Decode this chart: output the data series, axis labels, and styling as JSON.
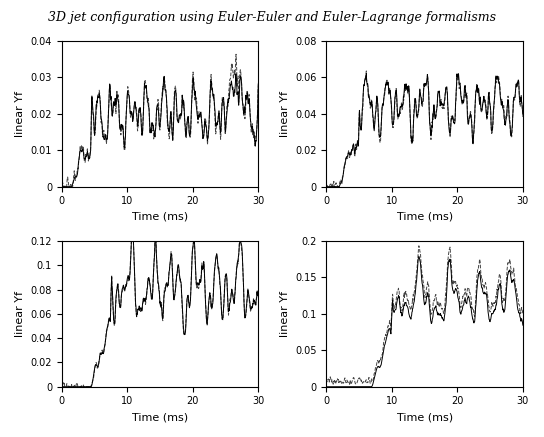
{
  "title": "3D jet configuration using Euler-Euler and Euler-Lagrange formalisms",
  "title_fontsize": 9,
  "title_style": "italic",
  "xlabel": "Time (ms)",
  "ylabel": "linear Yf",
  "xlim": [
    0,
    30
  ],
  "subplots": [
    {
      "ylim": [
        0,
        0.04
      ],
      "yticks": [
        0,
        0.01,
        0.02,
        0.03,
        0.04
      ]
    },
    {
      "ylim": [
        0,
        0.08
      ],
      "yticks": [
        0,
        0.02,
        0.04,
        0.06,
        0.08
      ]
    },
    {
      "ylim": [
        0,
        0.12
      ],
      "yticks": [
        0,
        0.02,
        0.04,
        0.06,
        0.08,
        0.1,
        0.12
      ]
    },
    {
      "ylim": [
        0,
        0.2
      ],
      "yticks": [
        0,
        0.05,
        0.1,
        0.15,
        0.2
      ]
    }
  ],
  "xticks": [
    0,
    10,
    20,
    30
  ],
  "line_color_solid": "#000000",
  "line_color_dashed": "#444444",
  "line_width": 0.7,
  "background_color": "#ffffff"
}
